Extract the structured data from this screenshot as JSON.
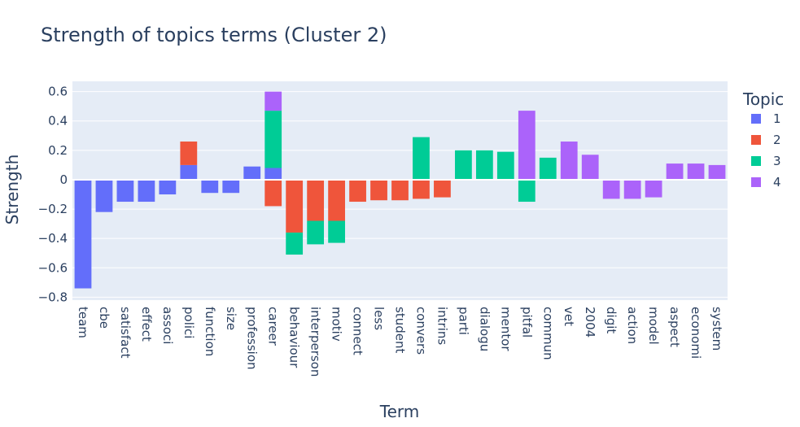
{
  "chart_data": {
    "type": "bar",
    "barmode": "relative",
    "title": "Strength of topics terms (Cluster 2)",
    "xlabel": "Term",
    "ylabel": "Strength",
    "ylim": [
      -0.82,
      0.67
    ],
    "yticks": [
      0.6,
      0.4,
      0.2,
      0,
      -0.2,
      -0.4,
      -0.6,
      -0.8
    ],
    "ytick_labels": [
      "0.6",
      "0.4",
      "0.2",
      "0",
      "−0.2",
      "−0.4",
      "−0.6",
      "−0.8"
    ],
    "grid": true,
    "plot_background": "#E5ECF6",
    "legend_title": "Topic",
    "legend_position": "right",
    "categories": [
      "team",
      "cbe",
      "satisfact",
      "effect",
      "associ",
      "polici",
      "function",
      "size",
      "profession",
      "career",
      "behaviour",
      "interperson",
      "motiv",
      "connect",
      "less",
      "student",
      "convers",
      "intrins",
      "parti",
      "dialogu",
      "mentor",
      "pitfal",
      "commun",
      "vet",
      "2004",
      "digit",
      "action",
      "model",
      "aspect",
      "economi",
      "system"
    ],
    "series": [
      {
        "name": "1",
        "color": "#636EFA",
        "values": [
          -0.74,
          -0.22,
          -0.15,
          -0.15,
          -0.1,
          0.1,
          -0.09,
          -0.09,
          0.09,
          0.08,
          0,
          0,
          0,
          0,
          0,
          0,
          0,
          0,
          0,
          0,
          0,
          0,
          0,
          0,
          0,
          0,
          0,
          0,
          0,
          0,
          0
        ]
      },
      {
        "name": "2",
        "color": "#EF553B",
        "values": [
          0,
          0,
          0,
          0,
          0,
          0.16,
          0,
          0,
          0,
          -0.18,
          -0.36,
          -0.28,
          -0.28,
          -0.15,
          -0.14,
          -0.14,
          -0.13,
          -0.12,
          0,
          0,
          0,
          0,
          0,
          0,
          0,
          0,
          0,
          0,
          0,
          0,
          0
        ]
      },
      {
        "name": "3",
        "color": "#00CC96",
        "values": [
          0,
          0,
          0,
          0,
          0,
          0,
          0,
          0,
          0,
          0.39,
          -0.15,
          -0.16,
          -0.15,
          0,
          0,
          0,
          0.29,
          0,
          0.2,
          0.2,
          0.19,
          -0.15,
          0.15,
          0,
          0,
          0,
          0,
          0,
          0,
          0,
          0
        ]
      },
      {
        "name": "4",
        "color": "#AB63FA",
        "values": [
          0,
          0,
          0,
          0,
          0,
          0,
          0,
          0,
          0,
          0.13,
          0,
          0,
          0,
          0,
          0,
          0,
          0,
          0,
          0,
          0,
          0,
          0.47,
          0,
          0.26,
          0.17,
          -0.13,
          -0.13,
          -0.12,
          0.11,
          0.11,
          0.1
        ]
      }
    ]
  }
}
